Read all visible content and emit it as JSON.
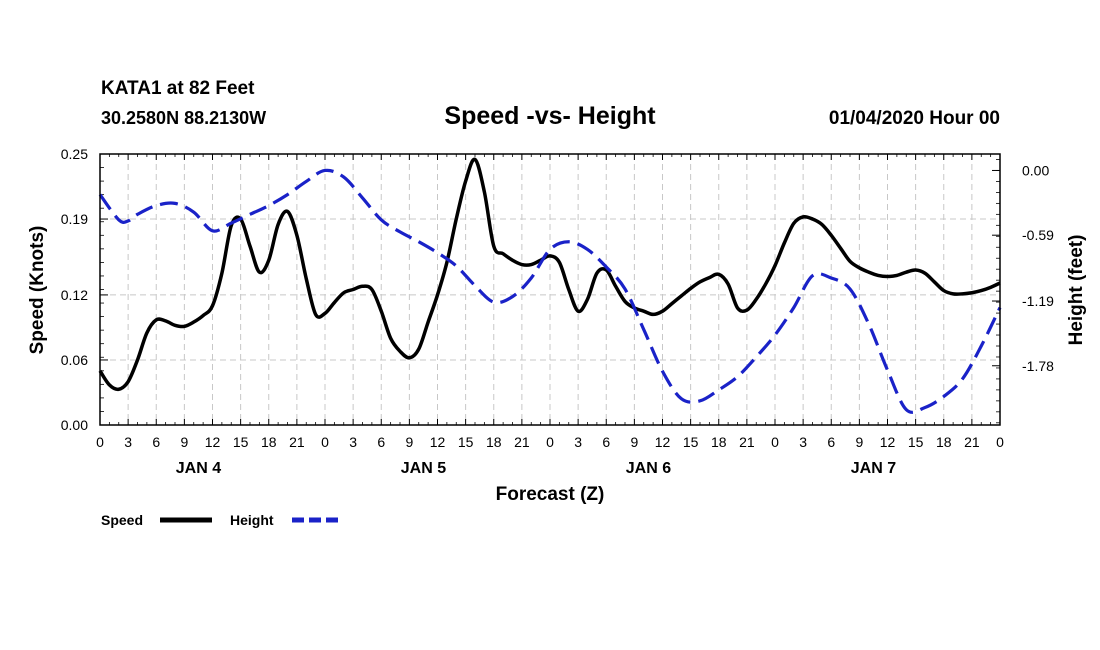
{
  "chart_data": {
    "type": "line",
    "station": "KATA1 at 82 Feet",
    "coords": "30.2580N 88.2130W",
    "title": "Speed -vs- Height",
    "timestamp": "01/04/2020 Hour 00",
    "xlabel": "Forecast (Z)",
    "ylabel_left": "Speed (Knots)",
    "ylabel_right": "Height (feet)",
    "x_ticks": [
      "0",
      "3",
      "6",
      "9",
      "12",
      "15",
      "18",
      "21",
      "0",
      "3",
      "6",
      "9",
      "12",
      "15",
      "18",
      "21",
      "0",
      "3",
      "6",
      "9",
      "12",
      "15",
      "18",
      "21",
      "0",
      "3",
      "6",
      "9",
      "12",
      "15",
      "18",
      "21",
      "0"
    ],
    "day_labels": [
      "JAN 4",
      "JAN 5",
      "JAN 6",
      "JAN 7"
    ],
    "left_axis": {
      "ylim": [
        0,
        0.25
      ],
      "ticks": [
        "0.00",
        "0.06",
        "0.12",
        "0.19",
        "0.25"
      ]
    },
    "right_axis": {
      "ylim": [
        -2.32,
        0.15
      ],
      "ticks": [
        "0.00",
        "-0.59",
        "-1.19",
        "-1.78"
      ]
    },
    "series": [
      {
        "name": "Speed",
        "color": "#000000",
        "axis": "left",
        "dash": "solid",
        "x": [
          0,
          1,
          2,
          3,
          4,
          5,
          6,
          7,
          8,
          9,
          10,
          11,
          12,
          13,
          14,
          15,
          16,
          17,
          18,
          19,
          20,
          21,
          22,
          23,
          24,
          25,
          26,
          27,
          28,
          29,
          30,
          31,
          32,
          33,
          34,
          35,
          36,
          37,
          38,
          39,
          40,
          41,
          42,
          43,
          44,
          45,
          46,
          47,
          48,
          49,
          50,
          51,
          52,
          53,
          54,
          55,
          56,
          57,
          58,
          59,
          60,
          61,
          62,
          63,
          64,
          65,
          66,
          67,
          68,
          69,
          70,
          71,
          72,
          73,
          74,
          75,
          76,
          77,
          78,
          79,
          80,
          81,
          82,
          83,
          84,
          85,
          86,
          87,
          88,
          89,
          90,
          91,
          92,
          93,
          94,
          95,
          96
        ],
        "values": [
          0.05,
          0.037,
          0.033,
          0.04,
          0.06,
          0.085,
          0.097,
          0.096,
          0.092,
          0.091,
          0.095,
          0.101,
          0.11,
          0.14,
          0.184,
          0.19,
          0.165,
          0.141,
          0.152,
          0.185,
          0.197,
          0.175,
          0.135,
          0.102,
          0.103,
          0.113,
          0.122,
          0.125,
          0.128,
          0.125,
          0.105,
          0.08,
          0.068,
          0.062,
          0.07,
          0.095,
          0.12,
          0.15,
          0.19,
          0.225,
          0.245,
          0.215,
          0.165,
          0.158,
          0.152,
          0.148,
          0.148,
          0.152,
          0.156,
          0.15,
          0.125,
          0.105,
          0.116,
          0.14,
          0.143,
          0.128,
          0.114,
          0.108,
          0.105,
          0.102,
          0.105,
          0.112,
          0.119,
          0.126,
          0.132,
          0.136,
          0.139,
          0.13,
          0.108,
          0.106,
          0.116,
          0.13,
          0.147,
          0.168,
          0.186,
          0.192,
          0.19,
          0.185,
          0.175,
          0.163,
          0.151,
          0.145,
          0.141,
          0.138,
          0.137,
          0.138,
          0.141,
          0.143,
          0.14,
          0.132,
          0.124,
          0.121,
          0.121,
          0.122,
          0.124,
          0.127,
          0.131
        ]
      },
      {
        "name": "Height",
        "color": "#1a22c8",
        "axis": "right",
        "dash": "dashed",
        "x": [
          0,
          2,
          3,
          4,
          6,
          8,
          10,
          12,
          14,
          16,
          18,
          20,
          22,
          24,
          26,
          28,
          30,
          32,
          34,
          36,
          38,
          40,
          42,
          44,
          46,
          48,
          50,
          52,
          54,
          56,
          58,
          60,
          62,
          64,
          66,
          68,
          70,
          72,
          74,
          76,
          78,
          80,
          82,
          84,
          86,
          88,
          90,
          92,
          94,
          96
        ],
        "values": [
          -0.22,
          -0.45,
          -0.46,
          -0.4,
          -0.32,
          -0.3,
          -0.38,
          -0.55,
          -0.48,
          -0.4,
          -0.32,
          -0.22,
          -0.1,
          0.0,
          -0.06,
          -0.25,
          -0.45,
          -0.56,
          -0.65,
          -0.75,
          -0.87,
          -1.05,
          -1.2,
          -1.15,
          -0.98,
          -0.72,
          -0.65,
          -0.72,
          -0.88,
          -1.08,
          -1.45,
          -1.83,
          -2.08,
          -2.1,
          -2.0,
          -1.88,
          -1.7,
          -1.5,
          -1.25,
          -0.96,
          -0.98,
          -1.08,
          -1.4,
          -1.82,
          -2.18,
          -2.16,
          -2.06,
          -1.9,
          -1.6,
          -1.25
        ]
      }
    ]
  }
}
